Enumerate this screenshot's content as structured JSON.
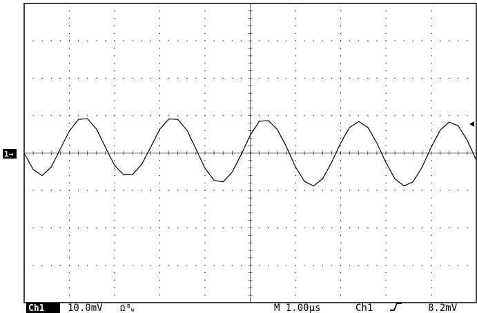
{
  "colors": {
    "background": "#ffffff",
    "trace": "#000000",
    "grid": "#000000",
    "frame": "#000000"
  },
  "channel_marker": {
    "label": "1→",
    "icon": "ground-level-arrow-icon"
  },
  "trigger_marker": {
    "icon": "trigger-level-arrow-icon"
  },
  "status_bar": {
    "channel_label": "Ch1",
    "channel_scale": "10.0mV",
    "channel_flags": "Ω",
    "channel_bw": "B",
    "channel_bw_sub": "W",
    "timebase": "M 1.00µs",
    "trigger_source": "Ch1",
    "trigger_slope_icon": "rising-edge-icon",
    "trigger_level": "8.2mV"
  },
  "chart_data": {
    "type": "line",
    "title": "",
    "xlabel": "",
    "ylabel": "",
    "grid": true,
    "divisions": {
      "horizontal": 10,
      "vertical": 8
    },
    "x_unit": "µs",
    "y_unit": "mV",
    "xlim": [
      -5,
      5
    ],
    "ylim": [
      -40,
      40
    ],
    "time_per_div_us": 1.0,
    "volts_per_div_mV": 10.0,
    "series": [
      {
        "x": [
          -5.0,
          -4.8,
          -4.6,
          -4.4,
          -4.2,
          -4.0,
          -3.8,
          -3.6,
          -3.4,
          -3.2,
          -3.0,
          -2.8,
          -2.6,
          -2.4,
          -2.2,
          -2.0,
          -1.8,
          -1.6,
          -1.4,
          -1.2,
          -1.0,
          -0.8,
          -0.6,
          -0.4,
          -0.2,
          0.0,
          0.2,
          0.4,
          0.6,
          0.8,
          1.0,
          1.2,
          1.4,
          1.6,
          1.8,
          2.0,
          2.2,
          2.4,
          2.6,
          2.8,
          3.0,
          3.2,
          3.4,
          3.6,
          3.8,
          4.0,
          4.2,
          4.4,
          4.6,
          4.8,
          5.0
        ],
        "y": [
          0.0,
          -4.4,
          -6.0,
          -3.7,
          1.1,
          5.9,
          9.0,
          9.2,
          6.4,
          1.5,
          -3.3,
          -5.8,
          -5.7,
          -3.0,
          1.6,
          6.4,
          9.1,
          9.0,
          6.1,
          1.1,
          -4.1,
          -7.3,
          -7.7,
          -5.1,
          -0.4,
          4.8,
          8.5,
          8.7,
          6.3,
          1.7,
          -3.7,
          -7.6,
          -8.8,
          -6.9,
          -2.5,
          2.7,
          6.9,
          8.4,
          6.9,
          2.7,
          -2.5,
          -6.9,
          -8.8,
          -7.7,
          -3.8,
          1.5,
          6.1,
          8.3,
          7.3,
          3.4,
          -1.9
        ]
      }
    ]
  }
}
